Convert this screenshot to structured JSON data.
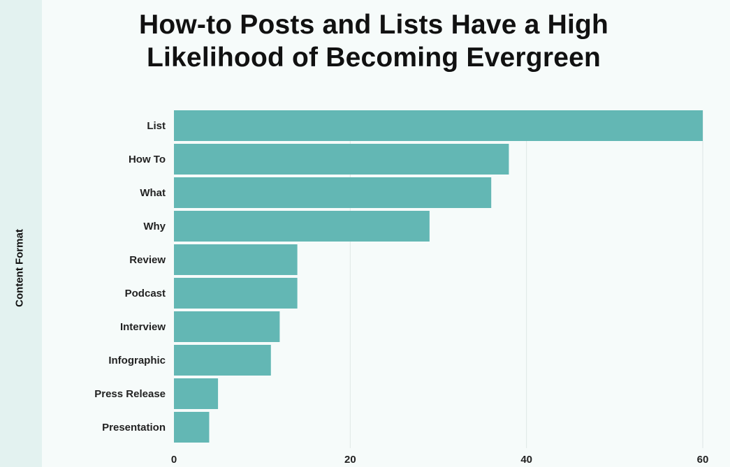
{
  "chart_data": {
    "type": "bar",
    "orientation": "horizontal",
    "title_lines": [
      "How-to Posts and Lists Have a High",
      "Likelihood of Becoming Evergreen"
    ],
    "ylabel": "Content Format",
    "categories": [
      "List",
      "How To",
      "What",
      "Why",
      "Review",
      "Podcast",
      "Interview",
      "Infographic",
      "Press Release",
      "Presentation"
    ],
    "values": [
      60,
      38,
      36,
      29,
      14,
      14,
      12,
      11,
      5,
      4
    ],
    "xlim": [
      0,
      60
    ],
    "xticks": [
      0,
      20,
      40,
      60
    ],
    "grid": "vertical",
    "bar_color": "#63b7b4"
  }
}
